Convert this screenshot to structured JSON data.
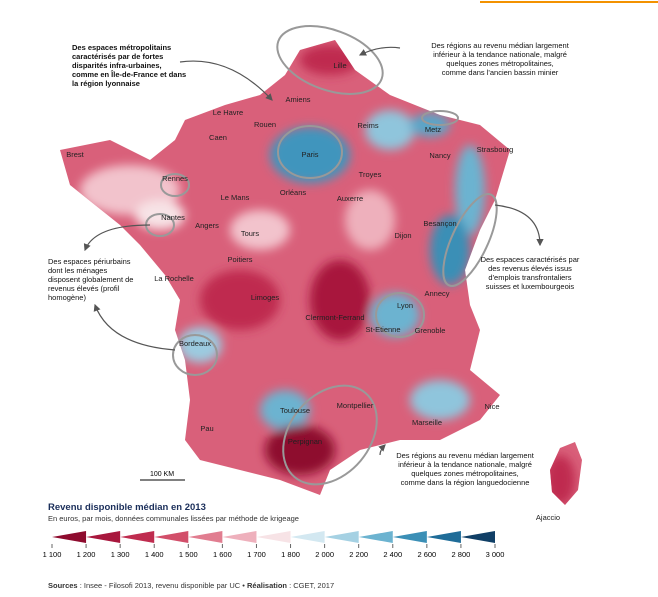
{
  "map": {
    "cities": [
      "Lille",
      "Amiens",
      "Le Havre",
      "Rouen",
      "Caen",
      "Reims",
      "Metz",
      "Paris",
      "Brest",
      "Nancy",
      "Strasbourg",
      "Rennes",
      "Troyes",
      "Le Mans",
      "Orléans",
      "Auxerre",
      "Nantes",
      "Angers",
      "Tours",
      "Besançon",
      "Dijon",
      "La Rochelle",
      "Poitiers",
      "Annecy",
      "Limoges",
      "Lyon",
      "Clermont-Ferrand",
      "St-Etienne",
      "Grenoble",
      "Bordeaux",
      "Montpellier",
      "Toulouse",
      "Nice",
      "Marseille",
      "Pau",
      "Perpignan",
      "Ajaccio"
    ],
    "scale": "100 KM",
    "annotations": [
      {
        "lines": [
          "Des espaces métropolitains",
          "caractérisés par de fortes",
          "disparités infra-urbaines,",
          "comme en Île-de-France et dans",
          "la région lyonnaise"
        ]
      },
      {
        "lines": [
          "Des régions au revenu médian largement",
          "inférieur à la tendance nationale, malgré",
          "quelques zones métropolitaines,",
          "comme dans l'ancien bassin minier"
        ]
      },
      {
        "lines": [
          "Des espaces périurbains",
          "dont les ménages",
          "disposent globalement de",
          "revenus élevés (profil",
          "homogène)"
        ]
      },
      {
        "lines": [
          "Des espaces caractérisés par",
          "des revenus élevés issus",
          "d'emplois transfrontaliers",
          "suisses et luxembourgeois"
        ]
      },
      {
        "lines": [
          "Des régions au revenu médian largement",
          "inférieur à la tendance nationale, malgré",
          "quelques zones métropolitaines,",
          "comme dans la région languedocienne"
        ]
      }
    ]
  },
  "legend": {
    "title": "Revenu disponible médian en 2013",
    "subtitle": "En euros, par mois, données communales lissées par méthode de krigeage",
    "ticks": [
      {
        "value": 1100,
        "label": "1 100"
      },
      {
        "value": 1200,
        "label": "1 200"
      },
      {
        "value": 1300,
        "label": "1 300"
      },
      {
        "value": 1400,
        "label": "1 400"
      },
      {
        "value": 1500,
        "label": "1 500"
      },
      {
        "value": 1600,
        "label": "1 600"
      },
      {
        "value": 1700,
        "label": "1 700"
      },
      {
        "value": 1800,
        "label": "1 800"
      },
      {
        "value": 2000,
        "label": "2 000"
      },
      {
        "value": 2200,
        "label": "2 200"
      },
      {
        "value": 2400,
        "label": "2 400"
      },
      {
        "value": 2600,
        "label": "2 600"
      },
      {
        "value": 2800,
        "label": "2 800"
      },
      {
        "value": 3000,
        "label": "3 000"
      }
    ],
    "colors": [
      "#8e0b2e",
      "#a8173d",
      "#bf2c4f",
      "#d24f6a",
      "#e17d90",
      "#eeb0bc",
      "#f7e3e6",
      "#d3e8f1",
      "#a5d1e3",
      "#6cb3d0",
      "#3b8fb6",
      "#1f6c98",
      "#103f66"
    ]
  },
  "source": {
    "label1": "Sources",
    "text1": " : Insee - Filosofi 2013, revenu disponible par UC • ",
    "label2": "Réalisation",
    "text2": " : CGET, 2017"
  }
}
